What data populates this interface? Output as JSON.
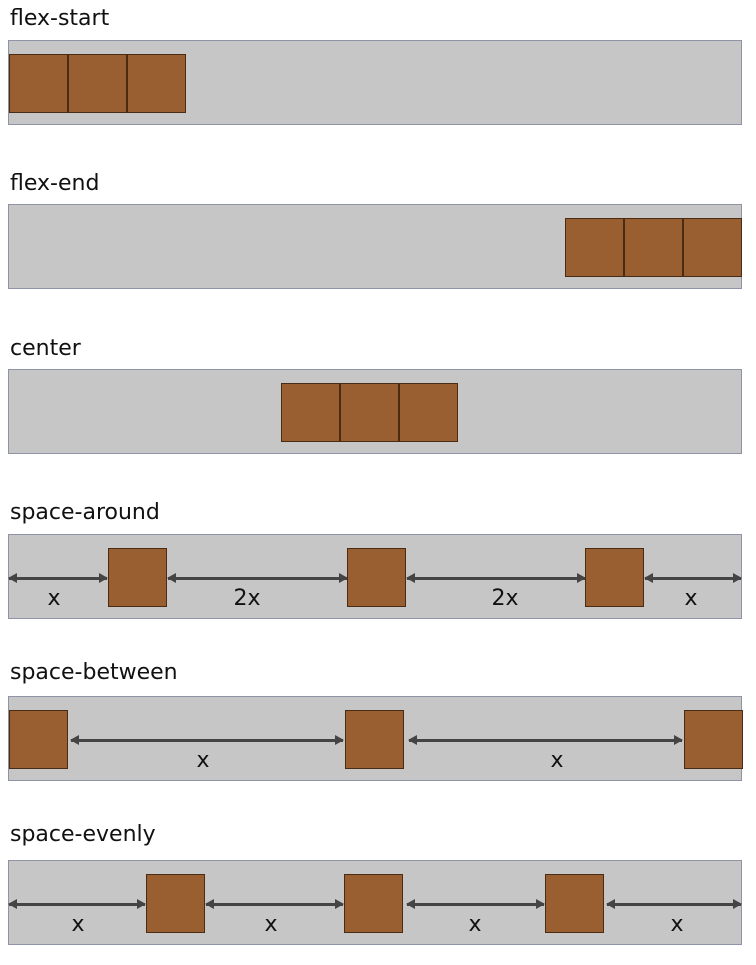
{
  "colors": {
    "track": "#c6c6c6",
    "track_border": "#8f93a6",
    "item": "#9a5f30",
    "item_border": "#4a2b14",
    "arrow": "#444444"
  },
  "sections": [
    {
      "title": "flex-start"
    },
    {
      "title": "flex-end"
    },
    {
      "title": "center"
    },
    {
      "title": "space-around",
      "labels": [
        "x",
        "2x",
        "2x",
        "x"
      ]
    },
    {
      "title": "space-between",
      "labels": [
        "x",
        "x"
      ]
    },
    {
      "title": "space-evenly",
      "labels": [
        "x",
        "x",
        "x",
        "x"
      ]
    }
  ]
}
